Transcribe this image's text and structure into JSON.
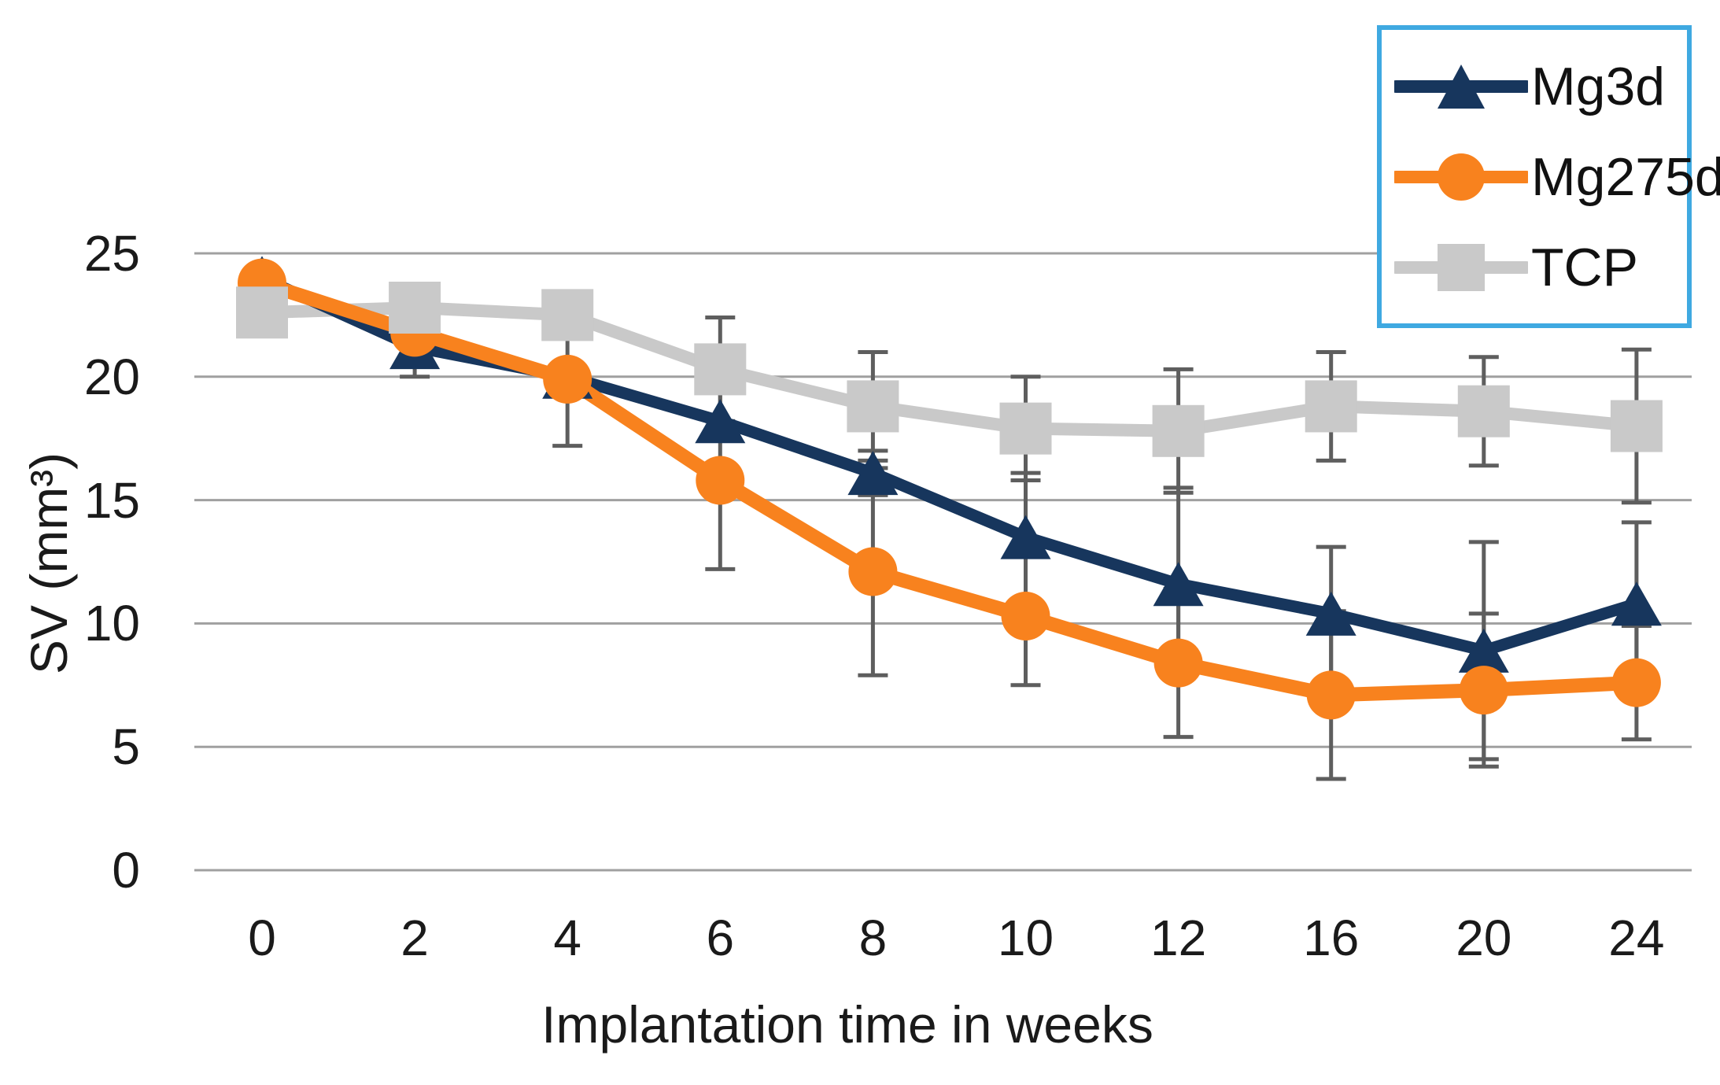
{
  "figure": {
    "background": "#ffffff",
    "text_color": "#1a1a1a"
  },
  "axes": {
    "x_title": "Implantation time in weeks",
    "y_title": "SV (mm³)",
    "x_tick_labels": [
      "0",
      "2",
      "4",
      "6",
      "8",
      "10",
      "12",
      "16",
      "20",
      "24"
    ],
    "y_tick_labels": [
      "0",
      "5",
      "10",
      "15",
      "20",
      "25"
    ]
  },
  "legend": {
    "border_color": "#3FA9E1",
    "entries": [
      "Mg3d",
      "Mg275d",
      "TCP"
    ]
  },
  "chart_data": {
    "type": "line",
    "title": "",
    "xlabel": "Implantation time in weeks",
    "ylabel": "SV (mm³)",
    "x": [
      0,
      2,
      4,
      6,
      8,
      10,
      12,
      16,
      20,
      24
    ],
    "x_categories": [
      "0",
      "2",
      "4",
      "6",
      "8",
      "10",
      "12",
      "16",
      "20",
      "24"
    ],
    "y_ticks": [
      0,
      5,
      10,
      15,
      20,
      25
    ],
    "ylim": [
      0,
      25
    ],
    "grid": "horizontal-only",
    "legend_position": "top-right",
    "gridline_color": "#A0A0A0",
    "error_bar_color": "#5E5E5E",
    "series": [
      {
        "name": "Mg3d",
        "color": "#17365D",
        "marker": "triangle",
        "values": [
          24.0,
          21.2,
          20.0,
          18.2,
          16.1,
          13.5,
          11.6,
          10.4,
          8.9,
          10.8
        ],
        "errors": [
          0,
          1.2,
          0,
          0,
          0.9,
          2.6,
          3.9,
          2.7,
          4.4,
          3.3
        ]
      },
      {
        "name": "Mg275d",
        "color": "#F8821E",
        "marker": "circle",
        "values": [
          23.8,
          21.8,
          19.9,
          15.8,
          12.1,
          10.3,
          8.4,
          7.1,
          7.3,
          7.6
        ],
        "errors": [
          0,
          0,
          2.7,
          3.6,
          4.2,
          2.8,
          3.0,
          3.4,
          3.1,
          2.3
        ]
      },
      {
        "name": "TCP",
        "color": "#C9C9C9",
        "marker": "square",
        "values": [
          22.6,
          22.8,
          22.5,
          20.3,
          18.8,
          17.9,
          17.8,
          18.8,
          18.6,
          18.0
        ],
        "errors": [
          0,
          0,
          0,
          2.1,
          2.2,
          2.1,
          2.5,
          2.2,
          2.2,
          3.1
        ]
      }
    ]
  }
}
